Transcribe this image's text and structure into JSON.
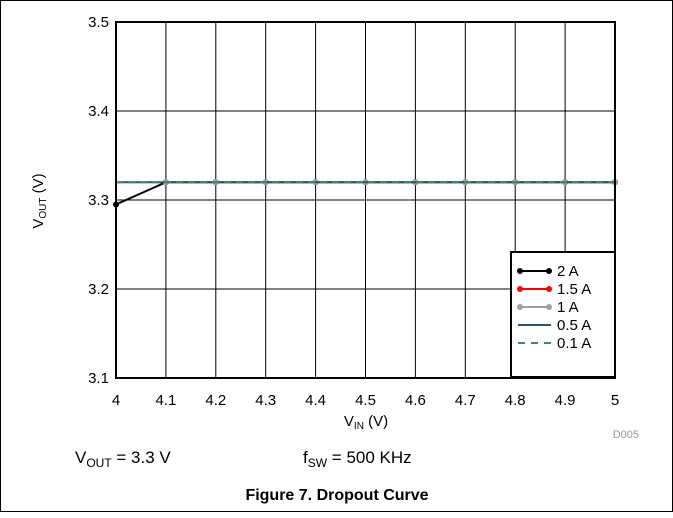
{
  "chart_data": {
    "type": "line",
    "xlim": [
      4,
      5
    ],
    "ylim": [
      3.1,
      3.5
    ],
    "x_ticks": [
      "4",
      "4.1",
      "4.2",
      "4.3",
      "4.4",
      "4.5",
      "4.6",
      "4.7",
      "4.8",
      "4.9",
      "5"
    ],
    "y_ticks": [
      "3.1",
      "3.2",
      "3.3",
      "3.4",
      "3.5"
    ],
    "xlabel": {
      "main": "V",
      "sub": "IN",
      "unit": " (V)"
    },
    "ylabel": {
      "main": "V",
      "sub": "OUT",
      "unit": " (V)"
    },
    "grid": true,
    "legend_position": "bottom-right",
    "series": [
      {
        "name": "2 A",
        "color": "#000000",
        "style": "solid-marker",
        "x": [
          4,
          4.1,
          4.2,
          4.3,
          4.4,
          4.5,
          4.6,
          4.7,
          4.8,
          4.9,
          5
        ],
        "y": [
          3.295,
          3.32,
          3.32,
          3.32,
          3.32,
          3.32,
          3.32,
          3.32,
          3.32,
          3.32,
          3.32
        ]
      },
      {
        "name": "1.5 A",
        "color": "#ff0000",
        "style": "solid-marker",
        "x": [
          4.1,
          4.2,
          4.3,
          4.4,
          4.5,
          4.6,
          4.7,
          4.8,
          4.9,
          5
        ],
        "y": [
          3.32,
          3.32,
          3.32,
          3.32,
          3.32,
          3.32,
          3.32,
          3.32,
          3.32,
          3.32
        ]
      },
      {
        "name": "1 A",
        "color": "#a0a0a0",
        "style": "solid-marker",
        "x": [
          4.1,
          4.2,
          4.3,
          4.4,
          4.5,
          4.6,
          4.7,
          4.8,
          4.9,
          5
        ],
        "y": [
          3.32,
          3.32,
          3.32,
          3.32,
          3.32,
          3.32,
          3.32,
          3.32,
          3.32,
          3.32
        ]
      },
      {
        "name": "0.5 A",
        "color": "#2a5470",
        "style": "solid",
        "x": [
          4,
          4.1,
          4.2,
          4.3,
          4.4,
          4.5,
          4.6,
          4.7,
          4.8,
          4.9,
          5
        ],
        "y": [
          3.32,
          3.32,
          3.32,
          3.32,
          3.32,
          3.32,
          3.32,
          3.32,
          3.32,
          3.32,
          3.32
        ]
      },
      {
        "name": "0.1 A",
        "color": "#3f8a6a",
        "style": "dashed",
        "x": [
          4,
          4.1,
          4.2,
          4.3,
          4.4,
          4.5,
          4.6,
          4.7,
          4.8,
          4.9,
          5
        ],
        "y": [
          3.32,
          3.32,
          3.32,
          3.32,
          3.32,
          3.32,
          3.32,
          3.32,
          3.32,
          3.32,
          3.32
        ]
      }
    ]
  },
  "figure_code": "D005",
  "conditions": {
    "vout": {
      "main": "V",
      "sub": "OUT",
      "rest": " = 3.3 V"
    },
    "fsw": {
      "main": "f",
      "sub": "SW",
      "rest": " = 500 KHz"
    }
  },
  "caption": "Figure 7. Dropout Curve"
}
